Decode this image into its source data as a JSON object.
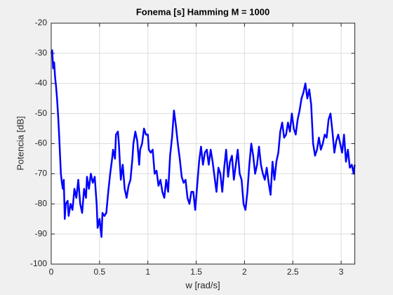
{
  "chart_data": {
    "type": "line",
    "title": "Fonema [s] Hamming M = 1000",
    "xlabel": "w [rad/s]",
    "ylabel": "Potencia [dB]",
    "color": "#0000ff",
    "grid": true,
    "xlim": [
      0,
      3.1416
    ],
    "ylim": [
      -100,
      -20
    ],
    "xticks": [
      0,
      0.5,
      1,
      1.5,
      2,
      2.5,
      3
    ],
    "yticks": [
      -100,
      -90,
      -80,
      -70,
      -60,
      -50,
      -40,
      -30,
      -20
    ],
    "x": [
      0,
      0.01,
      0.02,
      0.03,
      0.04,
      0.05,
      0.06,
      0.07,
      0.08,
      0.09,
      0.1,
      0.11,
      0.12,
      0.13,
      0.14,
      0.15,
      0.17,
      0.18,
      0.2,
      0.22,
      0.24,
      0.26,
      0.28,
      0.3,
      0.32,
      0.34,
      0.36,
      0.37,
      0.39,
      0.41,
      0.43,
      0.45,
      0.47,
      0.48,
      0.5,
      0.52,
      0.53,
      0.55,
      0.57,
      0.59,
      0.61,
      0.63,
      0.64,
      0.66,
      0.67,
      0.69,
      0.7,
      0.72,
      0.74,
      0.76,
      0.78,
      0.8,
      0.82,
      0.84,
      0.85,
      0.87,
      0.89,
      0.91,
      0.92,
      0.94,
      0.96,
      0.98,
      1.0,
      1.01,
      1.03,
      1.05,
      1.07,
      1.09,
      1.11,
      1.13,
      1.15,
      1.17,
      1.19,
      1.21,
      1.23,
      1.25,
      1.27,
      1.29,
      1.31,
      1.33,
      1.35,
      1.37,
      1.39,
      1.41,
      1.43,
      1.45,
      1.47,
      1.49,
      1.51,
      1.53,
      1.55,
      1.57,
      1.59,
      1.61,
      1.63,
      1.65,
      1.67,
      1.69,
      1.71,
      1.73,
      1.75,
      1.77,
      1.79,
      1.81,
      1.83,
      1.85,
      1.87,
      1.89,
      1.91,
      1.93,
      1.95,
      1.97,
      1.99,
      2.01,
      2.03,
      2.05,
      2.07,
      2.09,
      2.11,
      2.13,
      2.15,
      2.17,
      2.19,
      2.21,
      2.23,
      2.25,
      2.27,
      2.29,
      2.31,
      2.33,
      2.35,
      2.37,
      2.39,
      2.41,
      2.43,
      2.45,
      2.47,
      2.49,
      2.51,
      2.53,
      2.55,
      2.57,
      2.59,
      2.61,
      2.63,
      2.65,
      2.67,
      2.69,
      2.71,
      2.73,
      2.75,
      2.77,
      2.79,
      2.81,
      2.83,
      2.85,
      2.87,
      2.89,
      2.91,
      2.93,
      2.95,
      2.97,
      2.99,
      3.01,
      3.03,
      3.05,
      3.07,
      3.09,
      3.11,
      3.13,
      3.14
    ],
    "values": [
      -30,
      -29,
      -35,
      -33,
      -38,
      -41,
      -45,
      -50,
      -56,
      -63,
      -70,
      -73,
      -75,
      -72,
      -85,
      -80,
      -79,
      -84,
      -80,
      -82,
      -75,
      -78,
      -72,
      -80,
      -83,
      -75,
      -78,
      -71,
      -75,
      -70,
      -73,
      -71,
      -80,
      -88,
      -85,
      -91,
      -83,
      -84,
      -83,
      -76,
      -70,
      -65,
      -62,
      -65,
      -57,
      -56,
      -60,
      -72,
      -67,
      -75,
      -78,
      -74,
      -72,
      -65,
      -60,
      -56,
      -59,
      -67,
      -62,
      -60,
      -55,
      -57,
      -57,
      -62,
      -63,
      -62,
      -70,
      -69,
      -74,
      -72,
      -76,
      -78,
      -72,
      -76,
      -64,
      -58,
      -49,
      -54,
      -60,
      -65,
      -71,
      -73,
      -72,
      -78,
      -80,
      -76,
      -76,
      -82,
      -74,
      -66,
      -61,
      -67,
      -63,
      -62,
      -67,
      -62,
      -66,
      -71,
      -76,
      -68,
      -70,
      -76,
      -68,
      -62,
      -71,
      -66,
      -64,
      -72,
      -67,
      -62,
      -70,
      -72,
      -80,
      -82,
      -76,
      -67,
      -60,
      -64,
      -70,
      -67,
      -61,
      -67,
      -70,
      -72,
      -68,
      -73,
      -77,
      -66,
      -72,
      -66,
      -63,
      -56,
      -53,
      -58,
      -57,
      -53,
      -56,
      -50,
      -55,
      -57,
      -52,
      -49,
      -45,
      -43,
      -40,
      -45,
      -42,
      -47,
      -60,
      -64,
      -62,
      -58,
      -62,
      -60,
      -57,
      -58,
      -52,
      -50,
      -56,
      -63,
      -59,
      -57,
      -60,
      -63,
      -57,
      -66,
      -62,
      -68,
      -67,
      -70,
      -67
    ]
  }
}
